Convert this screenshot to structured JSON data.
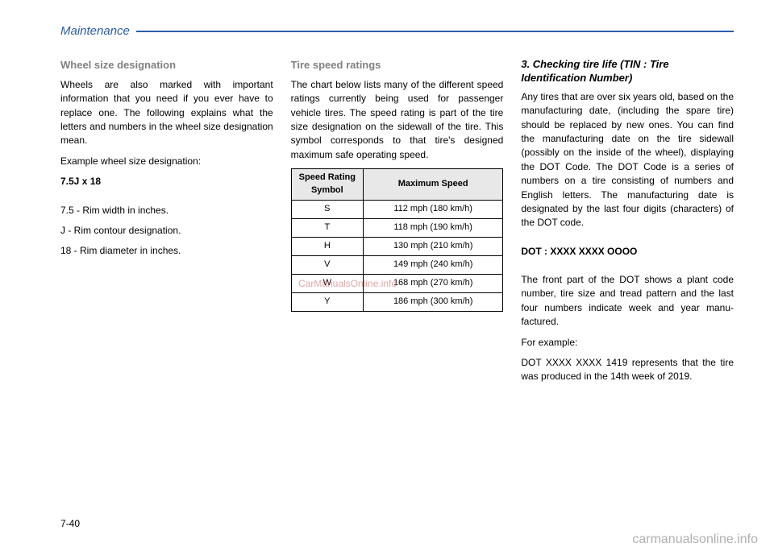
{
  "header": {
    "section": "Maintenance"
  },
  "pageNumber": "7-40",
  "watermarks": {
    "center": "CarManualsOnline.info",
    "bottom": "carmanualsonline.info"
  },
  "col1": {
    "subhead": "Wheel size designation",
    "p1": "Wheels are also marked with impor­tant information that you need if you ever have to replace one. The follow­ing explains what the letters and numbers in the wheel size designa­tion mean.",
    "p2": "Example wheel size designation:",
    "p3": "7.5J x 18",
    "l1": "7.5 - Rim width in inches.",
    "l2": "J - Rim contour designation.",
    "l3": "18 - Rim diameter in inches."
  },
  "col2": {
    "subhead": "Tire speed ratings",
    "p1": "The chart below lists many of the dif­ferent speed ratings currently being used for passenger vehicle tires. The speed rating is part of the tire size designation on the sidewall of the tire. This symbol corresponds to that tire's designed maximum safe oper­ating speed.",
    "th1": "Speed Rating Symbol",
    "th2": "Maximum Speed",
    "rows": [
      {
        "sym": "S",
        "spd": "112 mph (180 km/h)"
      },
      {
        "sym": "T",
        "spd": "118 mph (190 km/h)"
      },
      {
        "sym": "H",
        "spd": "130 mph (210 km/h)"
      },
      {
        "sym": "V",
        "spd": "149 mph (240 km/h)"
      },
      {
        "sym": "W",
        "spd": "168 mph (270 km/h)"
      },
      {
        "sym": "Y",
        "spd": "186 mph (300 km/h)"
      }
    ]
  },
  "col3": {
    "subhead": "3. Checking tire life (TIN : Tire Identification Number)",
    "p1": "Any tires that are over six years old, based on the manufacturing date, (including the spare tire) should be replaced by new ones. You can find the manufacturing date on the tire sidewall (possibly on the inside of the wheel), displaying the DOT Code. The DOT Code is a series of num­bers on a tire consisting of numbers and English letters. The manufactur­ing date is designated by the last four digits (characters) of the DOT code.",
    "p2": "DOT : XXXX XXXX OOOO",
    "p3": "The front part of the DOT shows a plant code number, tire size and tread pattern and the last four num­bers indicate week and year manu­factured.",
    "p4": "For example:",
    "p5": "DOT XXXX XXXX 1419 represents that the tire was produced in the 14th week of 2019."
  }
}
